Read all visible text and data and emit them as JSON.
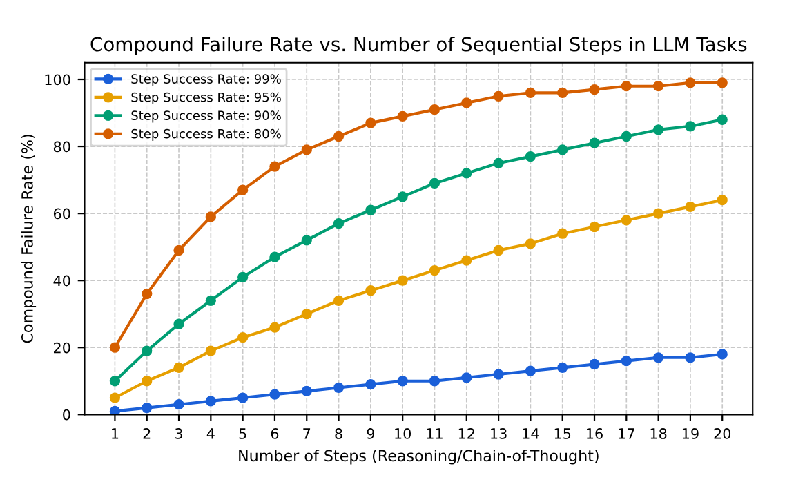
{
  "chart_data": {
    "type": "line",
    "title": "Compound Failure Rate vs. Number of Sequential Steps in LLM Tasks",
    "xlabel": "Number of Steps (Reasoning/Chain-of-Thought)",
    "ylabel": "Compound Failure Rate (%)",
    "x": [
      1,
      2,
      3,
      4,
      5,
      6,
      7,
      8,
      9,
      10,
      11,
      12,
      13,
      14,
      15,
      16,
      17,
      18,
      19,
      20
    ],
    "series": [
      {
        "name": "Step Success Rate: 99%",
        "color": "#1a5fd8",
        "values": [
          1,
          2,
          3,
          4,
          5,
          6,
          7,
          8,
          9,
          10,
          10,
          11,
          12,
          13,
          14,
          15,
          16,
          17,
          17,
          18
        ]
      },
      {
        "name": "Step Success Rate: 95%",
        "color": "#e69f00",
        "values": [
          5,
          10,
          14,
          19,
          23,
          26,
          30,
          34,
          37,
          40,
          43,
          46,
          49,
          51,
          54,
          56,
          58,
          60,
          62,
          64
        ]
      },
      {
        "name": "Step Success Rate: 90%",
        "color": "#009e73",
        "values": [
          10,
          19,
          27,
          34,
          41,
          47,
          52,
          57,
          61,
          65,
          69,
          72,
          75,
          77,
          79,
          81,
          83,
          85,
          86,
          88
        ]
      },
      {
        "name": "Step Success Rate: 80%",
        "color": "#d55e00",
        "values": [
          20,
          36,
          49,
          59,
          67,
          74,
          79,
          83,
          87,
          89,
          91,
          93,
          95,
          96,
          96,
          97,
          98,
          98,
          99,
          99
        ]
      }
    ],
    "xlim": [
      0.05,
      20.95
    ],
    "xticks": [
      1,
      2,
      3,
      4,
      5,
      6,
      7,
      8,
      9,
      10,
      11,
      12,
      13,
      14,
      15,
      16,
      17,
      18,
      19,
      20
    ],
    "ylim": [
      0,
      105
    ],
    "yticks": [
      0,
      20,
      40,
      60,
      80,
      100
    ],
    "grid": true,
    "legend": "top left",
    "marker": "circle",
    "line_style": "solid"
  }
}
